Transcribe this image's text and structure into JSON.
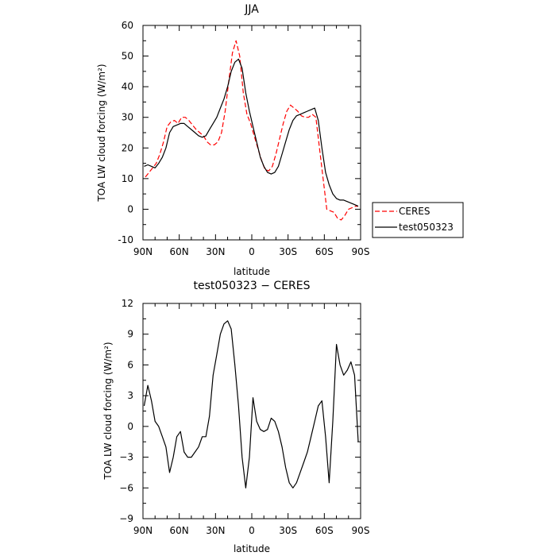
{
  "chart_data": [
    {
      "type": "line",
      "title": "JJA",
      "xlabel": "latitude",
      "ylabel": "TOA LW cloud forcing (W/m²)",
      "xlim": [
        90,
        -90
      ],
      "ylim": [
        -10,
        60
      ],
      "xtick_values": [
        90,
        60,
        30,
        0,
        -30,
        -60,
        -90
      ],
      "xtick_labels": [
        "90N",
        "60N",
        "30N",
        "0",
        "30S",
        "60S",
        "90S"
      ],
      "ytick_values": [
        -10,
        0,
        10,
        20,
        30,
        40,
        50,
        60
      ],
      "ytick_labels": [
        "-10",
        "0",
        "10",
        "20",
        "30",
        "40",
        "50",
        "60"
      ],
      "grid": false,
      "legend_position": "outside-right",
      "series": [
        {
          "name": "CERES",
          "color": "#ff0000",
          "dash": "dashed",
          "x": [
            88,
            85,
            82,
            79,
            76,
            73,
            70,
            67,
            64,
            61,
            58,
            55,
            52,
            49,
            46,
            43,
            40,
            37,
            34,
            31,
            28,
            25,
            22,
            19,
            16,
            13,
            10,
            7,
            4,
            1,
            -2,
            -5,
            -8,
            -11,
            -14,
            -17,
            -20,
            -23,
            -26,
            -29,
            -32,
            -35,
            -38,
            -41,
            -44,
            -47,
            -50,
            -53,
            -56,
            -59,
            -62,
            -65,
            -68,
            -71,
            -74,
            -77,
            -80,
            -83,
            -86,
            -88
          ],
          "y": [
            10.5,
            12.0,
            13.5,
            15.0,
            18.0,
            22.0,
            27.0,
            28.5,
            29.0,
            28.0,
            30.0,
            30.0,
            29.0,
            27.5,
            26.0,
            25.0,
            24.0,
            22.0,
            21.0,
            21.0,
            22.0,
            25.0,
            32.0,
            42.0,
            51.0,
            55.0,
            50.0,
            38.0,
            31.0,
            28.0,
            24.0,
            20.0,
            16.0,
            13.0,
            12.5,
            14.0,
            18.0,
            23.0,
            28.0,
            32.0,
            34.0,
            33.0,
            32.0,
            30.5,
            30.0,
            30.0,
            31.0,
            30.0,
            20.0,
            10.0,
            0.0,
            -0.5,
            -1.0,
            -3.0,
            -3.5,
            -2.0,
            0.0,
            0.5,
            1.0,
            1.0
          ]
        },
        {
          "name": "test050323",
          "color": "#000000",
          "dash": "solid",
          "x": [
            89,
            86,
            83,
            80,
            77,
            74,
            71,
            68,
            65,
            62,
            59,
            56,
            53,
            50,
            47,
            44,
            41,
            38,
            35,
            32,
            29,
            26,
            23,
            20,
            17,
            14,
            11,
            8,
            5,
            2,
            -1,
            -4,
            -7,
            -10,
            -13,
            -16,
            -19,
            -22,
            -25,
            -28,
            -31,
            -34,
            -37,
            -40,
            -43,
            -46,
            -49,
            -52,
            -55,
            -58,
            -61,
            -64,
            -67,
            -70,
            -73,
            -76,
            -79,
            -82,
            -85,
            -88
          ],
          "y": [
            14.0,
            14.5,
            14.0,
            13.5,
            15.0,
            17.0,
            20.0,
            25.0,
            27.0,
            27.5,
            28.0,
            28.0,
            27.0,
            26.0,
            25.0,
            24.0,
            23.5,
            24.0,
            26.0,
            28.0,
            30.0,
            33.0,
            36.0,
            40.0,
            45.0,
            48.0,
            49.0,
            46.0,
            38.0,
            32.0,
            27.0,
            22.0,
            17.0,
            14.0,
            12.0,
            11.5,
            12.0,
            14.0,
            18.0,
            22.0,
            26.0,
            29.0,
            30.5,
            31.0,
            31.5,
            32.0,
            32.5,
            33.0,
            29.0,
            20.0,
            12.0,
            8.0,
            5.0,
            3.5,
            3.0,
            3.0,
            2.5,
            2.0,
            1.5,
            1.0
          ]
        }
      ]
    },
    {
      "type": "line",
      "title": "test050323 − CERES",
      "xlabel": "latitude",
      "ylabel": "TOA LW cloud forcing (W/m²)",
      "xlim": [
        90,
        -90
      ],
      "ylim": [
        -9,
        12
      ],
      "xtick_values": [
        90,
        60,
        30,
        0,
        -30,
        -60,
        -90
      ],
      "xtick_labels": [
        "90N",
        "60N",
        "30N",
        "0",
        "30S",
        "60S",
        "90S"
      ],
      "ytick_values": [
        -9,
        -6,
        -3,
        0,
        3,
        6,
        9,
        12
      ],
      "ytick_labels": [
        "−9",
        "−6",
        "−3",
        "0",
        "3",
        "6",
        "9",
        "12"
      ],
      "grid": false,
      "series": [
        {
          "color": "#000000",
          "dash": "solid",
          "x": [
            89,
            86,
            83,
            80,
            77,
            74,
            71,
            68,
            65,
            62,
            59,
            56,
            53,
            50,
            47,
            44,
            41,
            38,
            35,
            32,
            29,
            26,
            23,
            20,
            17,
            14,
            11,
            8,
            5,
            2,
            -1,
            -4,
            -7,
            -10,
            -13,
            -16,
            -19,
            -22,
            -25,
            -28,
            -31,
            -34,
            -37,
            -40,
            -43,
            -46,
            -49,
            -52,
            -55,
            -58,
            -61,
            -64,
            -67,
            -70,
            -73,
            -76,
            -79,
            -82,
            -85,
            -88
          ],
          "y": [
            2.0,
            4.0,
            2.5,
            0.5,
            0.0,
            -1.0,
            -2.0,
            -4.5,
            -3.0,
            -1.0,
            -0.5,
            -2.5,
            -3.0,
            -3.0,
            -2.5,
            -2.0,
            -1.0,
            -1.0,
            1.0,
            5.0,
            7.0,
            9.0,
            10.0,
            10.3,
            9.5,
            6.0,
            2.0,
            -3.0,
            -6.0,
            -3.0,
            2.8,
            0.5,
            -0.3,
            -0.5,
            -0.3,
            0.8,
            0.5,
            -0.5,
            -2.0,
            -4.0,
            -5.5,
            -6.0,
            -5.5,
            -4.5,
            -3.5,
            -2.5,
            -1.0,
            0.5,
            2.0,
            2.5,
            -1.0,
            -5.5,
            0.5,
            8.0,
            6.0,
            5.0,
            5.5,
            6.3,
            5.0,
            -1.5
          ]
        }
      ]
    }
  ]
}
